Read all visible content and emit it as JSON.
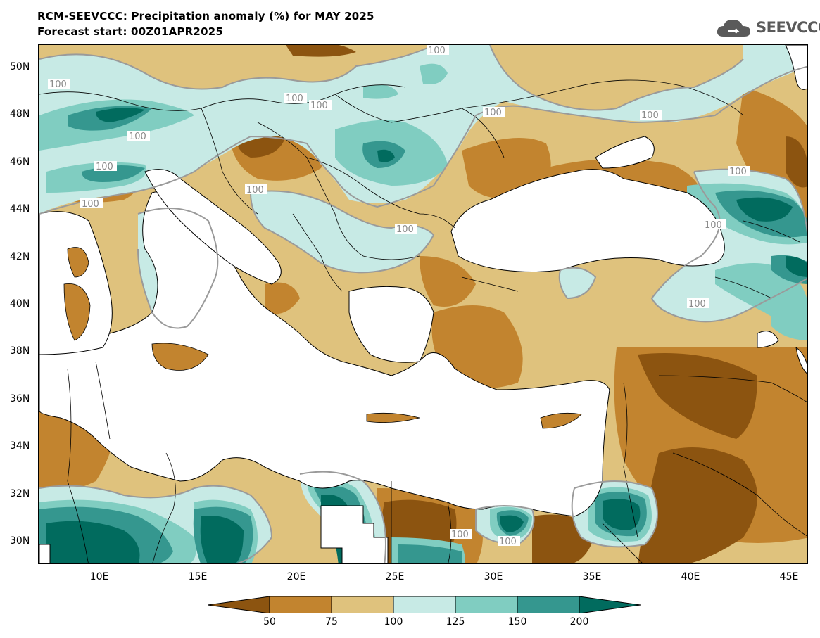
{
  "header": {
    "title_line1": "RCM-SEEVCCC: Precipitation anomaly (%) for MAY 2025",
    "title_line2": "Forecast start: 00Z01APR2025"
  },
  "logo": {
    "text": "SEEVCCC",
    "icon": "cloud-icon"
  },
  "map": {
    "lat_labels": [
      "50N",
      "48N",
      "46N",
      "44N",
      "42N",
      "40N",
      "38N",
      "36N",
      "34N",
      "32N",
      "30N"
    ],
    "lon_labels": [
      "10E",
      "15E",
      "20E",
      "25E",
      "30E",
      "35E",
      "40E",
      "45E"
    ],
    "contour_label": "100",
    "colors": {
      "below_50": "#8c5410",
      "50_75": "#c2842f",
      "75_100": "#dfc27d",
      "100_125": "#c7eae5",
      "125_150": "#80cdc1",
      "150_200": "#35978f",
      "above_200": "#016b5e",
      "sea": "#ffffff",
      "contour": "#9a9a9a",
      "border": "#000000"
    }
  },
  "colorbar": {
    "ticks": [
      "50",
      "75",
      "100",
      "125",
      "150",
      "200"
    ],
    "colors": [
      "#8c5410",
      "#c2842f",
      "#dfc27d",
      "#c7eae5",
      "#80cdc1",
      "#35978f",
      "#016b5e"
    ]
  }
}
